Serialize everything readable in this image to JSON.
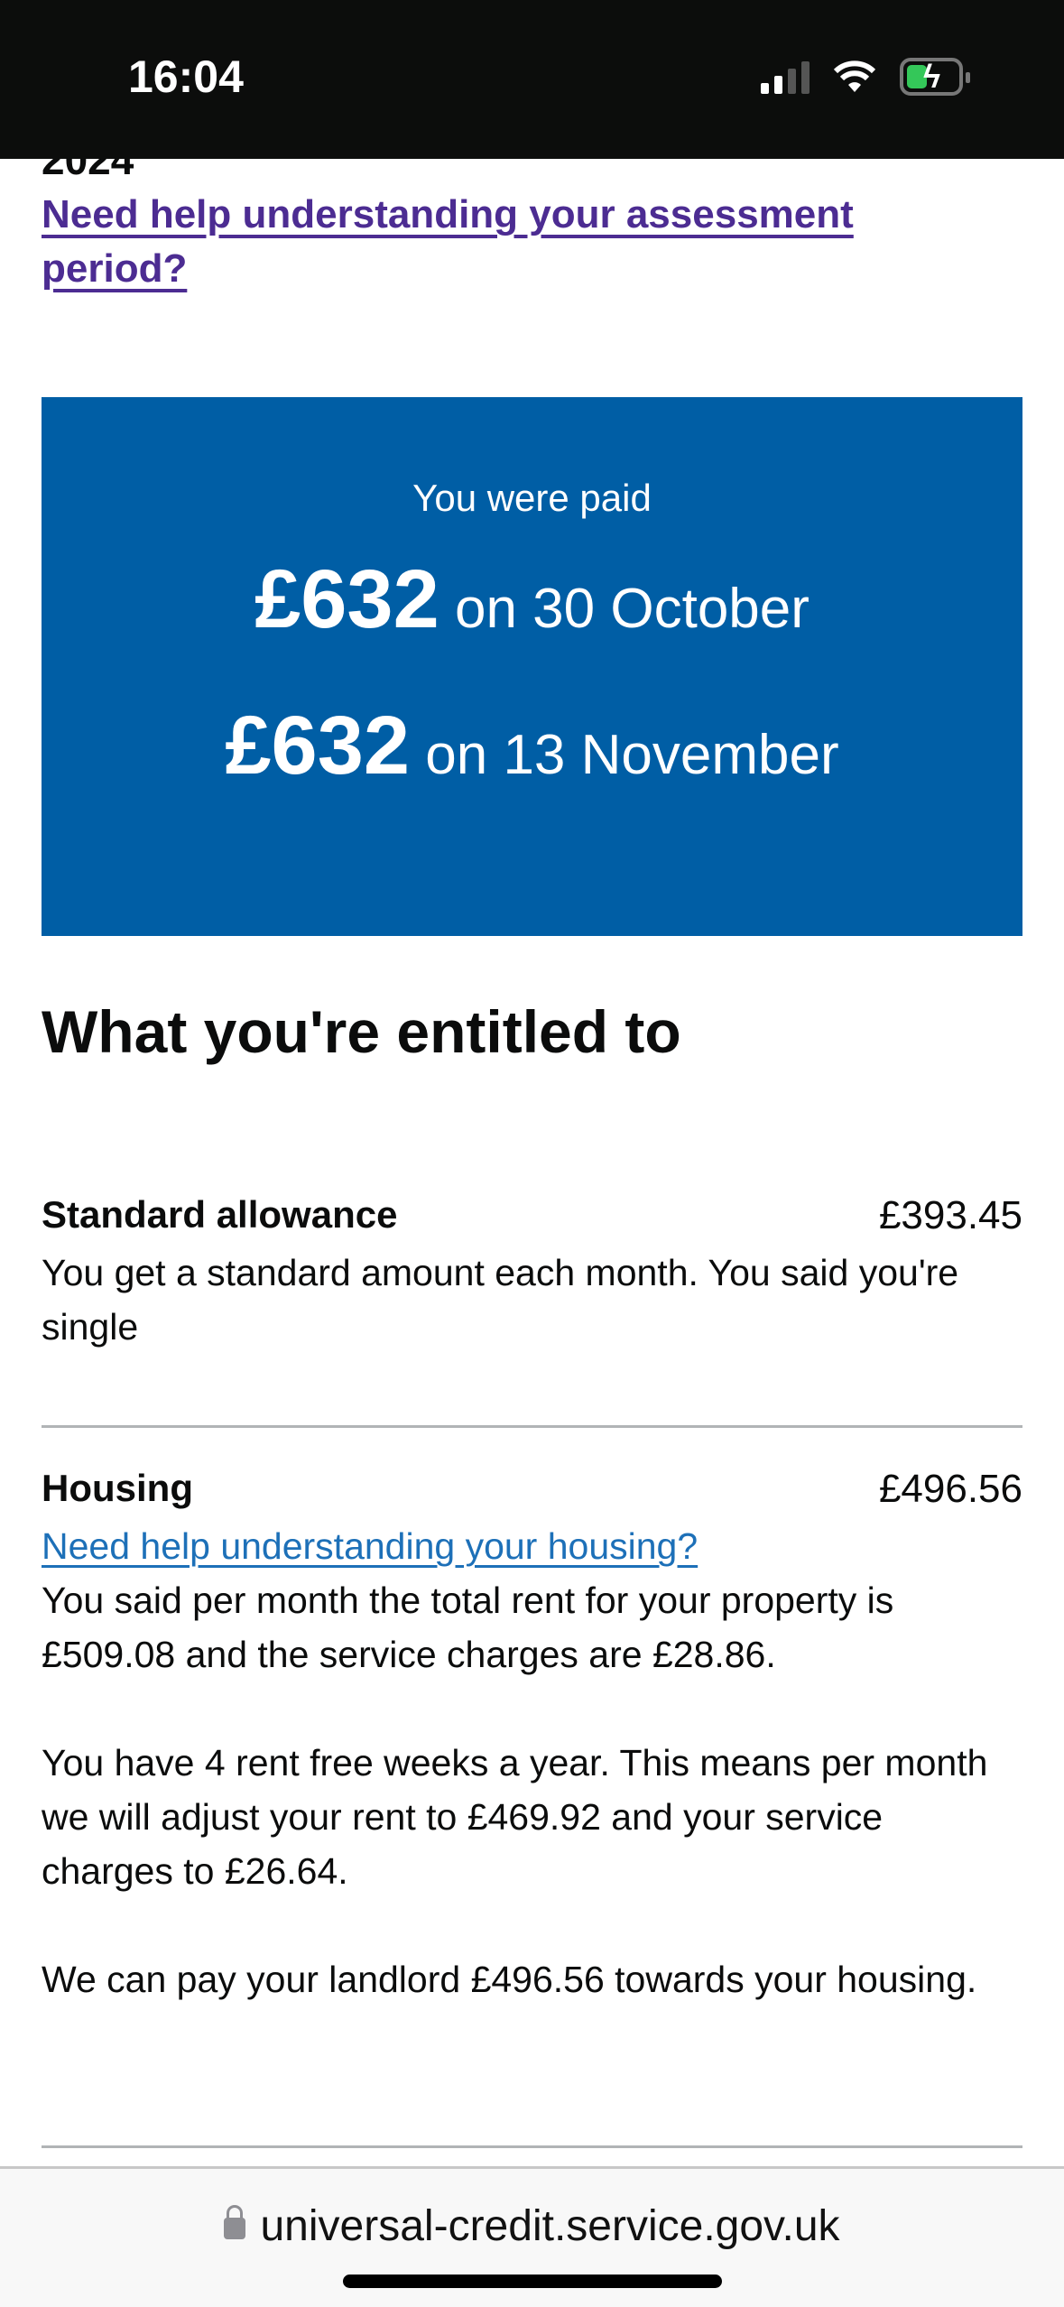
{
  "status_bar": {
    "time": "16:04",
    "battery_color": "#34c759"
  },
  "page": {
    "partial_heading": "2024",
    "assessment_link": "Need help understanding your assessment period?",
    "payment_panel": {
      "label": "You were paid",
      "payments": [
        {
          "amount": "£632",
          "date": "on 30 October"
        },
        {
          "amount": "£632",
          "date": "on 13 November"
        }
      ],
      "color": "#005ea5"
    },
    "entitled_heading": "What you're entitled to",
    "standard": {
      "title": "Standard allowance",
      "amount": "£393.45",
      "desc": "You get a standard amount each month. You said you're single"
    },
    "housing": {
      "title": "Housing",
      "amount": "£496.56",
      "link": "Need help understanding your housing?",
      "paragraphs": [
        "You said per month the total rent for your property is £509.08 and the service charges are £28.86.",
        "You have 4 rent free weeks a year. This means per month we will adjust your rent to £469.92 and your service charges to £26.64.",
        "We can pay your landlord £496.56 towards your housing."
      ]
    }
  },
  "browser": {
    "url": "universal-credit.service.gov.uk"
  }
}
